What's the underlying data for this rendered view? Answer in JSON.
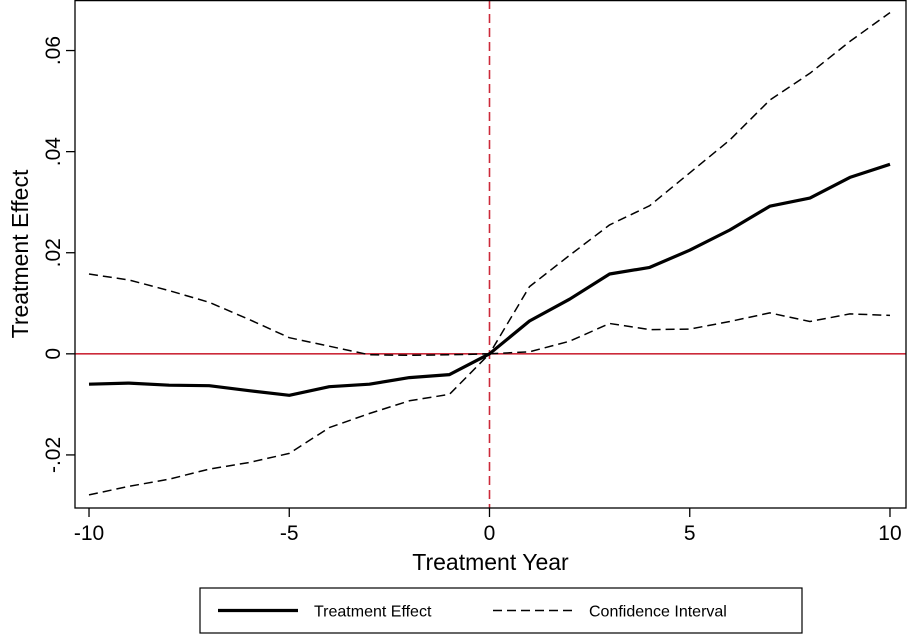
{
  "chart_data": {
    "type": "line",
    "xlabel": "Treatment Year",
    "ylabel": "Treatment Effect",
    "xlim": [
      -10.35,
      10.4
    ],
    "ylim": [
      -0.0305,
      0.07
    ],
    "x_ticks": [
      {
        "value": -10,
        "label": "-10"
      },
      {
        "value": -5,
        "label": "-5"
      },
      {
        "value": 0,
        "label": "0"
      },
      {
        "value": 5,
        "label": "5"
      },
      {
        "value": 10,
        "label": "10"
      }
    ],
    "y_ticks": [
      {
        "value": -0.02,
        "label": "-.02"
      },
      {
        "value": 0,
        "label": "0"
      },
      {
        "value": 0.02,
        "label": ".02"
      },
      {
        "value": 0.04,
        "label": ".04"
      },
      {
        "value": 0.06,
        "label": ".06"
      }
    ],
    "grid": false,
    "legend_position": "bottom",
    "reference_lines": [
      {
        "axis": "y",
        "value": 0,
        "color": "#cc2a3a",
        "style": "solid"
      },
      {
        "axis": "x",
        "value": 0,
        "color": "#cc2a3a",
        "style": "dashed"
      }
    ],
    "x": [
      -10,
      -9,
      -8,
      -7,
      -6,
      -5,
      -4,
      -3,
      -2,
      -1,
      0,
      1,
      2,
      3,
      4,
      5,
      6,
      7,
      8,
      9,
      10
    ],
    "series": [
      {
        "name": "Treatment Effect",
        "style": "solid",
        "values": [
          -0.006,
          -0.0058,
          -0.0062,
          -0.0063,
          -0.0073,
          -0.0082,
          -0.0065,
          -0.006,
          -0.0047,
          -0.0041,
          0.0,
          0.0065,
          0.0108,
          0.0158,
          0.0171,
          0.0205,
          0.0245,
          0.0292,
          0.0308,
          0.0349,
          0.0375
        ]
      },
      {
        "name": "Confidence Interval",
        "style": "dashed",
        "values": [
          0.0158,
          0.0146,
          0.0125,
          0.0102,
          0.0068,
          0.0032,
          0.0015,
          -0.0002,
          -0.0003,
          -0.0002,
          0.0,
          0.0133,
          0.0195,
          0.0255,
          0.0293,
          0.0358,
          0.0423,
          0.0502,
          0.0555,
          0.0618,
          0.0675
        ]
      },
      {
        "name": "Confidence Interval",
        "style": "dashed",
        "legend": false,
        "values": [
          -0.0279,
          -0.0262,
          -0.0248,
          -0.0228,
          -0.0215,
          -0.0197,
          -0.0146,
          -0.0118,
          -0.0093,
          -0.008,
          0.0,
          0.0004,
          0.0025,
          0.006,
          0.0048,
          0.0049,
          0.0064,
          0.0081,
          0.0064,
          0.0079,
          0.0076
        ]
      }
    ],
    "colors": {
      "series": "#000000",
      "reference": "#cc2a3a"
    }
  }
}
